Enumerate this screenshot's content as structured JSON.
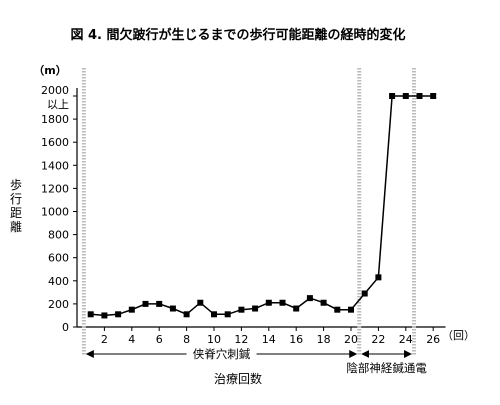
{
  "chart_data": {
    "type": "line",
    "title": "図 4. 間欠跛行が生じるまでの歩行可能距離の経時的変化",
    "ylabel": "歩行距離",
    "yunit": "（m）",
    "xunit": "（回）",
    "xlabel": "治療回数",
    "ylim": [
      0,
      2000
    ],
    "xlim": [
      0,
      26
    ],
    "yticks": [
      0,
      200,
      400,
      600,
      800,
      1000,
      1200,
      1400,
      1600,
      1800,
      2000
    ],
    "ytop_label_line2": "以上",
    "xticks": [
      2,
      4,
      6,
      8,
      10,
      12,
      14,
      16,
      18,
      20,
      22,
      24,
      26
    ],
    "series": [
      {
        "x": [
          1,
          2,
          3,
          4,
          5,
          6,
          7,
          8,
          9,
          10,
          11,
          12,
          13,
          14,
          15,
          16,
          17,
          18,
          19,
          20,
          21,
          22,
          23,
          24,
          25,
          26
        ],
        "y": [
          110,
          100,
          110,
          150,
          200,
          200,
          160,
          110,
          210,
          110,
          110,
          150,
          160,
          210,
          210,
          160,
          250,
          210,
          150,
          150,
          290,
          430,
          2000,
          2000,
          2000,
          2000
        ]
      }
    ],
    "dividers_x": [
      0.5,
      20.6,
      24.6
    ],
    "phases": [
      {
        "label": "侠脊穴刺鍼",
        "from": 0.5,
        "to": 20.6
      },
      {
        "label": "陰部神経鍼通電",
        "from": 20.6,
        "to": 24.6
      }
    ],
    "grid": false,
    "legend": "none"
  },
  "colors": {
    "line": "#000000",
    "marker": "#000000",
    "divider": "#bbbbbb"
  }
}
